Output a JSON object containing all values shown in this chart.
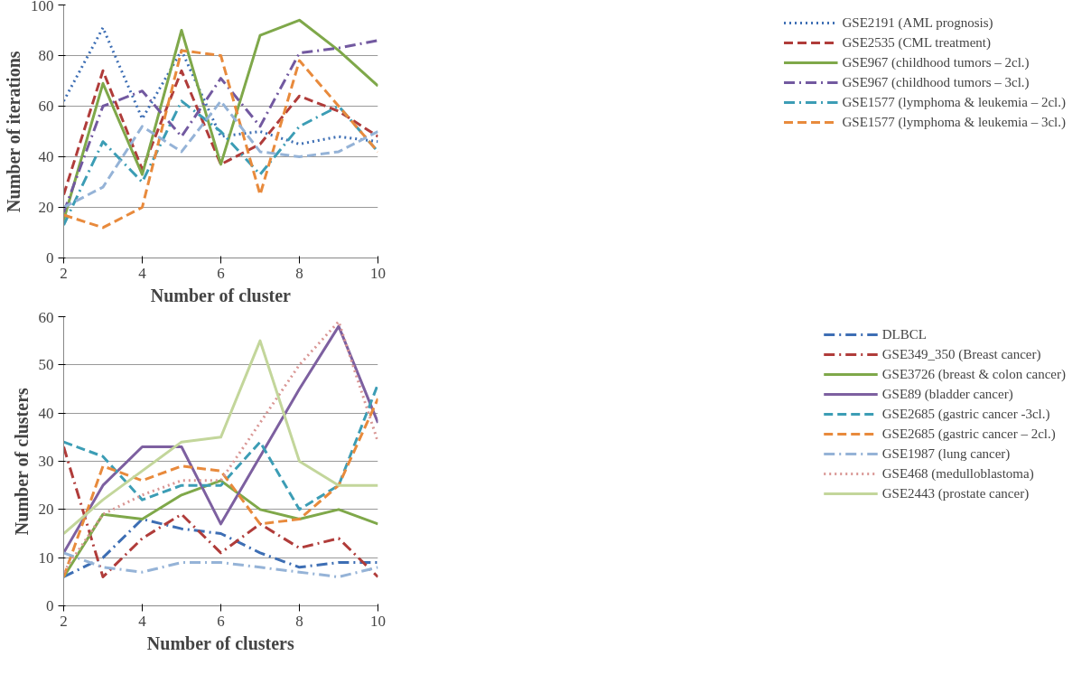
{
  "chart_data": [
    {
      "type": "line",
      "xlabel": "Number of cluster",
      "ylabel": "Number of iterations",
      "x": [
        2,
        3,
        4,
        5,
        6,
        7,
        8,
        9,
        10
      ],
      "xlim": [
        2,
        10
      ],
      "xticks": [
        2,
        4,
        6,
        8,
        10
      ],
      "ylim": [
        0,
        100
      ],
      "yticks": [
        0,
        20,
        40,
        60,
        80,
        100
      ],
      "grid": "y",
      "legend": "right",
      "series": [
        {
          "name": "GSE2191 (AML prognosis)",
          "color": "#3d6eb4",
          "line_style": "dotted",
          "values": [
            62,
            91,
            55,
            82,
            48,
            50,
            45,
            48,
            46
          ]
        },
        {
          "name": "GSE2535 (CML treatment)",
          "color": "#b03c3a",
          "line_style": "dashed",
          "values": [
            25,
            74,
            35,
            74,
            37,
            45,
            64,
            58,
            48
          ]
        },
        {
          "name": "GSE967 (childhood tumors – 2cl.)",
          "color": "#7fa84a",
          "line_style": "solid",
          "values": [
            15,
            69,
            33,
            90,
            37,
            88,
            94,
            82,
            68
          ]
        },
        {
          "name": "GSE967 (childhood tumors – 3cl.)",
          "color": "#7259a0",
          "line_style": "dashdot",
          "values": [
            18,
            60,
            66,
            48,
            71,
            52,
            81,
            83,
            86
          ]
        },
        {
          "name": "GSE1577 (lymphoma & leukemia – 2cl.)",
          "color": "#3c9db5",
          "line_style": "dashdot",
          "values": [
            13,
            46,
            30,
            62,
            50,
            33,
            52,
            60,
            42
          ]
        },
        {
          "name": "GSE1577 (lymphoma & leukemia – 3cl.)",
          "color": "#e88a3c",
          "line_style": "dashed",
          "values": [
            17,
            12,
            20,
            82,
            80,
            25,
            78,
            60,
            42
          ]
        },
        {
          "color": "#95b3d7",
          "line_style": "dashed",
          "values": [
            20,
            28,
            52,
            42,
            62,
            42,
            40,
            42,
            50
          ]
        }
      ]
    },
    {
      "type": "line",
      "xlabel": "Number of clusters",
      "ylabel": "Number of clusters",
      "x": [
        2,
        3,
        4,
        5,
        6,
        7,
        8,
        9,
        10
      ],
      "xlim": [
        2,
        10
      ],
      "xticks": [
        2,
        4,
        6,
        8,
        10
      ],
      "ylim": [
        0,
        60
      ],
      "yticks": [
        0,
        10,
        20,
        30,
        40,
        50,
        60
      ],
      "grid": "y",
      "legend": "right",
      "series": [
        {
          "name": "DLBCL",
          "color": "#3d6eb4",
          "line_style": "dashdot",
          "values": [
            6,
            10,
            18,
            16,
            15,
            11,
            8,
            9,
            9
          ]
        },
        {
          "name": "GSE349_350 (Breast cancer)",
          "color": "#b03c3a",
          "line_style": "dashdot",
          "values": [
            33,
            6,
            14,
            19,
            11,
            17,
            12,
            14,
            6
          ]
        },
        {
          "name": "GSE3726 (breast & colon cancer)",
          "color": "#7fa84a",
          "line_style": "solid",
          "values": [
            6,
            19,
            18,
            23,
            26,
            20,
            18,
            20,
            17
          ]
        },
        {
          "name": "GSE89 (bladder cancer)",
          "color": "#7d60a0",
          "line_style": "solid",
          "values": [
            11,
            25,
            33,
            33,
            17,
            31,
            45,
            58,
            38
          ]
        },
        {
          "name": "GSE2685 (gastric cancer -3cl.)",
          "color": "#3c9db5",
          "line_style": "dashed",
          "values": [
            34,
            31,
            22,
            25,
            25,
            34,
            20,
            25,
            46
          ]
        },
        {
          "name": "GSE2685 (gastric cancer – 2cl.)",
          "color": "#e88a3c",
          "line_style": "dashed",
          "values": [
            6,
            29,
            26,
            29,
            28,
            17,
            18,
            25,
            43
          ]
        },
        {
          "name": "GSE1987 (lung cancer)",
          "color": "#95b3d7",
          "line_style": "dashdot",
          "values": [
            11,
            8,
            7,
            9,
            9,
            8,
            7,
            6,
            8
          ]
        },
        {
          "name": "GSE468 (medulloblastoma)",
          "color": "#d99694",
          "line_style": "dotted",
          "values": [
            7,
            19,
            23,
            26,
            26,
            38,
            50,
            59,
            34
          ]
        },
        {
          "name": "GSE2443 (prostate cancer)",
          "color": "#c3d69b",
          "line_style": "solid",
          "values": [
            15,
            22,
            28,
            34,
            35,
            55,
            30,
            25,
            25
          ]
        }
      ]
    }
  ]
}
